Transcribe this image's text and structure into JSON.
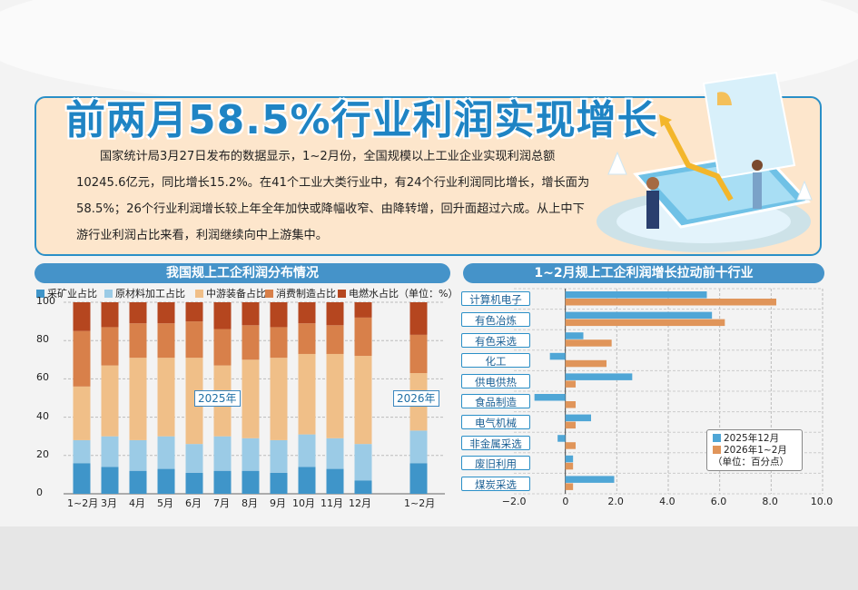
{
  "title": "前两月58.5%行业利润实现增长",
  "intro": "国家统计局3月27日发布的数据显示，1~2月份，全国规模以上工业企业实现利润总额10245.6亿元，同比增长15.2%。在41个工业大类行业中，有24个行业利润同比增长，增长面为58.5%；26个行业利润增长较上年全年加快或降幅收窄、由降转增，回升面超过六成。从上中下游行业利润占比来看，利润继续向中上游集中。",
  "chart_data": [
    {
      "type": "bar",
      "title": "我国规上工企利润分布情况",
      "unit_note": "（单位：%）",
      "categories": [
        "1~2月",
        "3月",
        "4月",
        "5月",
        "6月",
        "7月",
        "8月",
        "9月",
        "10月",
        "11月",
        "12月",
        "1~2月"
      ],
      "group_labels": [
        "2025年",
        "2026年"
      ],
      "ylim": [
        0,
        100
      ],
      "yticks": [
        "0",
        "20",
        "40",
        "60",
        "80",
        "100"
      ],
      "colors": {
        "mining": "#3f95c9",
        "raw": "#9bcbe6",
        "equipment": "#f0bf88",
        "consumer": "#d8804a",
        "utility": "#b5461f"
      },
      "series": [
        {
          "name": "采矿业占比",
          "key": "mining",
          "values": [
            16,
            14,
            12,
            13,
            11,
            12,
            12,
            11,
            14,
            13,
            7,
            16
          ]
        },
        {
          "name": "原材料加工占比",
          "key": "raw",
          "values": [
            12,
            16,
            16,
            17,
            15,
            18,
            17,
            17,
            17,
            16,
            19,
            17
          ]
        },
        {
          "name": "中游装备占比",
          "key": "equipment",
          "values": [
            28,
            37,
            43,
            41,
            45,
            37,
            41,
            43,
            42,
            44,
            46,
            30
          ]
        },
        {
          "name": "消费制造占比",
          "key": "consumer",
          "values": [
            29,
            20,
            18,
            18,
            19,
            19,
            18,
            16,
            16,
            15,
            20,
            20
          ]
        },
        {
          "name": "电燃水占比",
          "key": "utility",
          "values": [
            15,
            13,
            11,
            11,
            10,
            14,
            12,
            13,
            11,
            12,
            8,
            17
          ]
        }
      ]
    },
    {
      "type": "bar",
      "title": "1~2月规上工企利润增长拉动前十行业",
      "unit_note": "（单位：百分点）",
      "orientation": "horizontal",
      "categories": [
        "计算机电子",
        "有色冶炼",
        "有色采选",
        "化工",
        "供电供热",
        "食品制造",
        "电气机械",
        "非金属采选",
        "废旧利用",
        "煤炭采选"
      ],
      "xlim": [
        -2.0,
        10.0
      ],
      "xticks": [
        "−2.0",
        "0",
        "2.0",
        "4.0",
        "6.0",
        "8.0",
        "10.0"
      ],
      "series": [
        {
          "name": "2025年12月",
          "color": "#4fa6d6",
          "values": [
            5.5,
            5.7,
            0.7,
            -0.6,
            2.6,
            -1.2,
            1.0,
            -0.3,
            0.3,
            1.9
          ]
        },
        {
          "name": "2026年1~2月",
          "color": "#e0955a",
          "values": [
            8.2,
            6.2,
            1.8,
            1.6,
            0.4,
            0.4,
            0.4,
            0.4,
            0.3,
            0.3
          ]
        }
      ]
    }
  ]
}
